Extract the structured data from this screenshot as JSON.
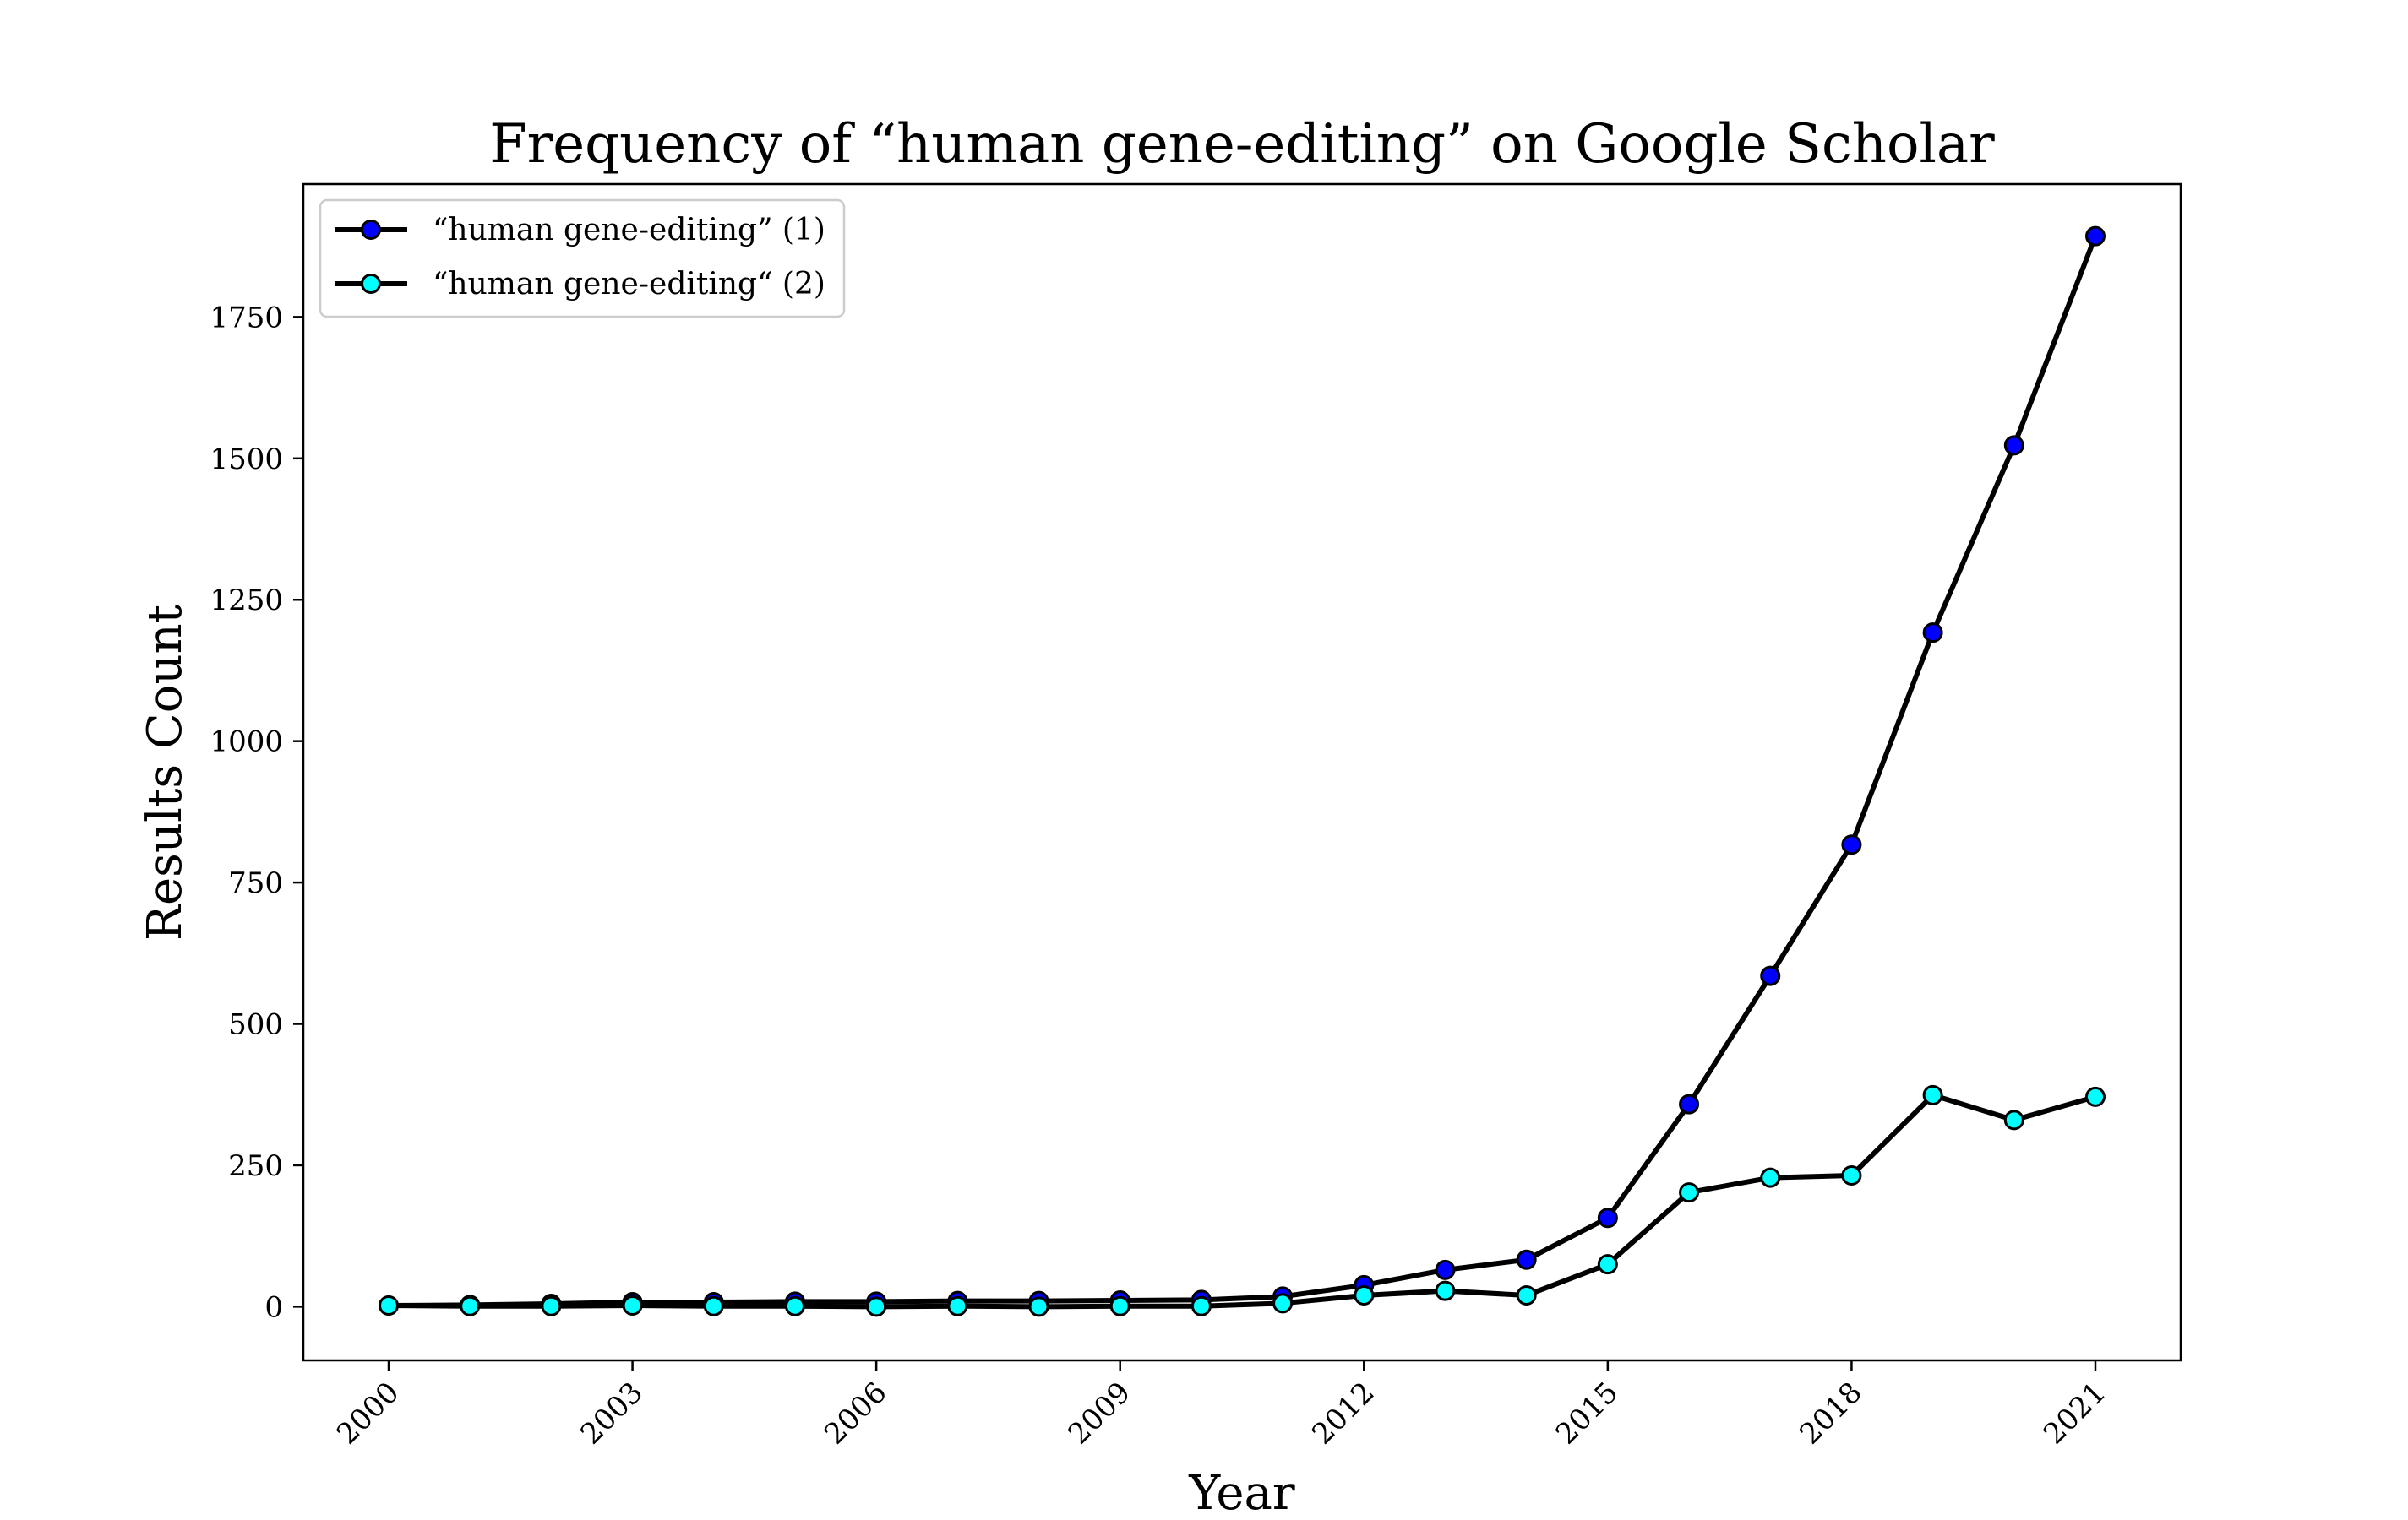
{
  "chart_data": {
    "type": "line",
    "title": "Frequency of “human gene-editing” on Google Scholar",
    "xlabel": "Year",
    "ylabel": "Results Count",
    "xlim": [
      1998.95,
      2022.05
    ],
    "ylim": [
      -95,
      1985
    ],
    "xticks": [
      2000,
      2003,
      2006,
      2009,
      2012,
      2015,
      2018,
      2021
    ],
    "yticks": [
      0,
      250,
      500,
      750,
      1000,
      1250,
      1500,
      1750
    ],
    "grid": false,
    "legend_position": "top-left",
    "x": [
      2000,
      2001,
      2002,
      2003,
      2004,
      2005,
      2006,
      2007,
      2008,
      2009,
      2010,
      2011,
      2012,
      2013,
      2014,
      2015,
      2016,
      2017,
      2018,
      2019,
      2020,
      2021
    ],
    "series": [
      {
        "name": "“human gene-editing” (1)",
        "color": "#0000ff",
        "values": [
          2,
          3,
          5,
          8,
          8,
          9,
          9,
          10,
          10,
          11,
          12,
          18,
          38,
          65,
          83,
          157,
          358,
          585,
          817,
          1192,
          1523,
          1893
        ]
      },
      {
        "name": "“human gene-editing“ (2)",
        "color": "#00ffff",
        "values": [
          2,
          1,
          1,
          2,
          1,
          1,
          0,
          1,
          0,
          1,
          1,
          6,
          20,
          28,
          20,
          75,
          202,
          228,
          232,
          374,
          330,
          371
        ]
      }
    ]
  }
}
